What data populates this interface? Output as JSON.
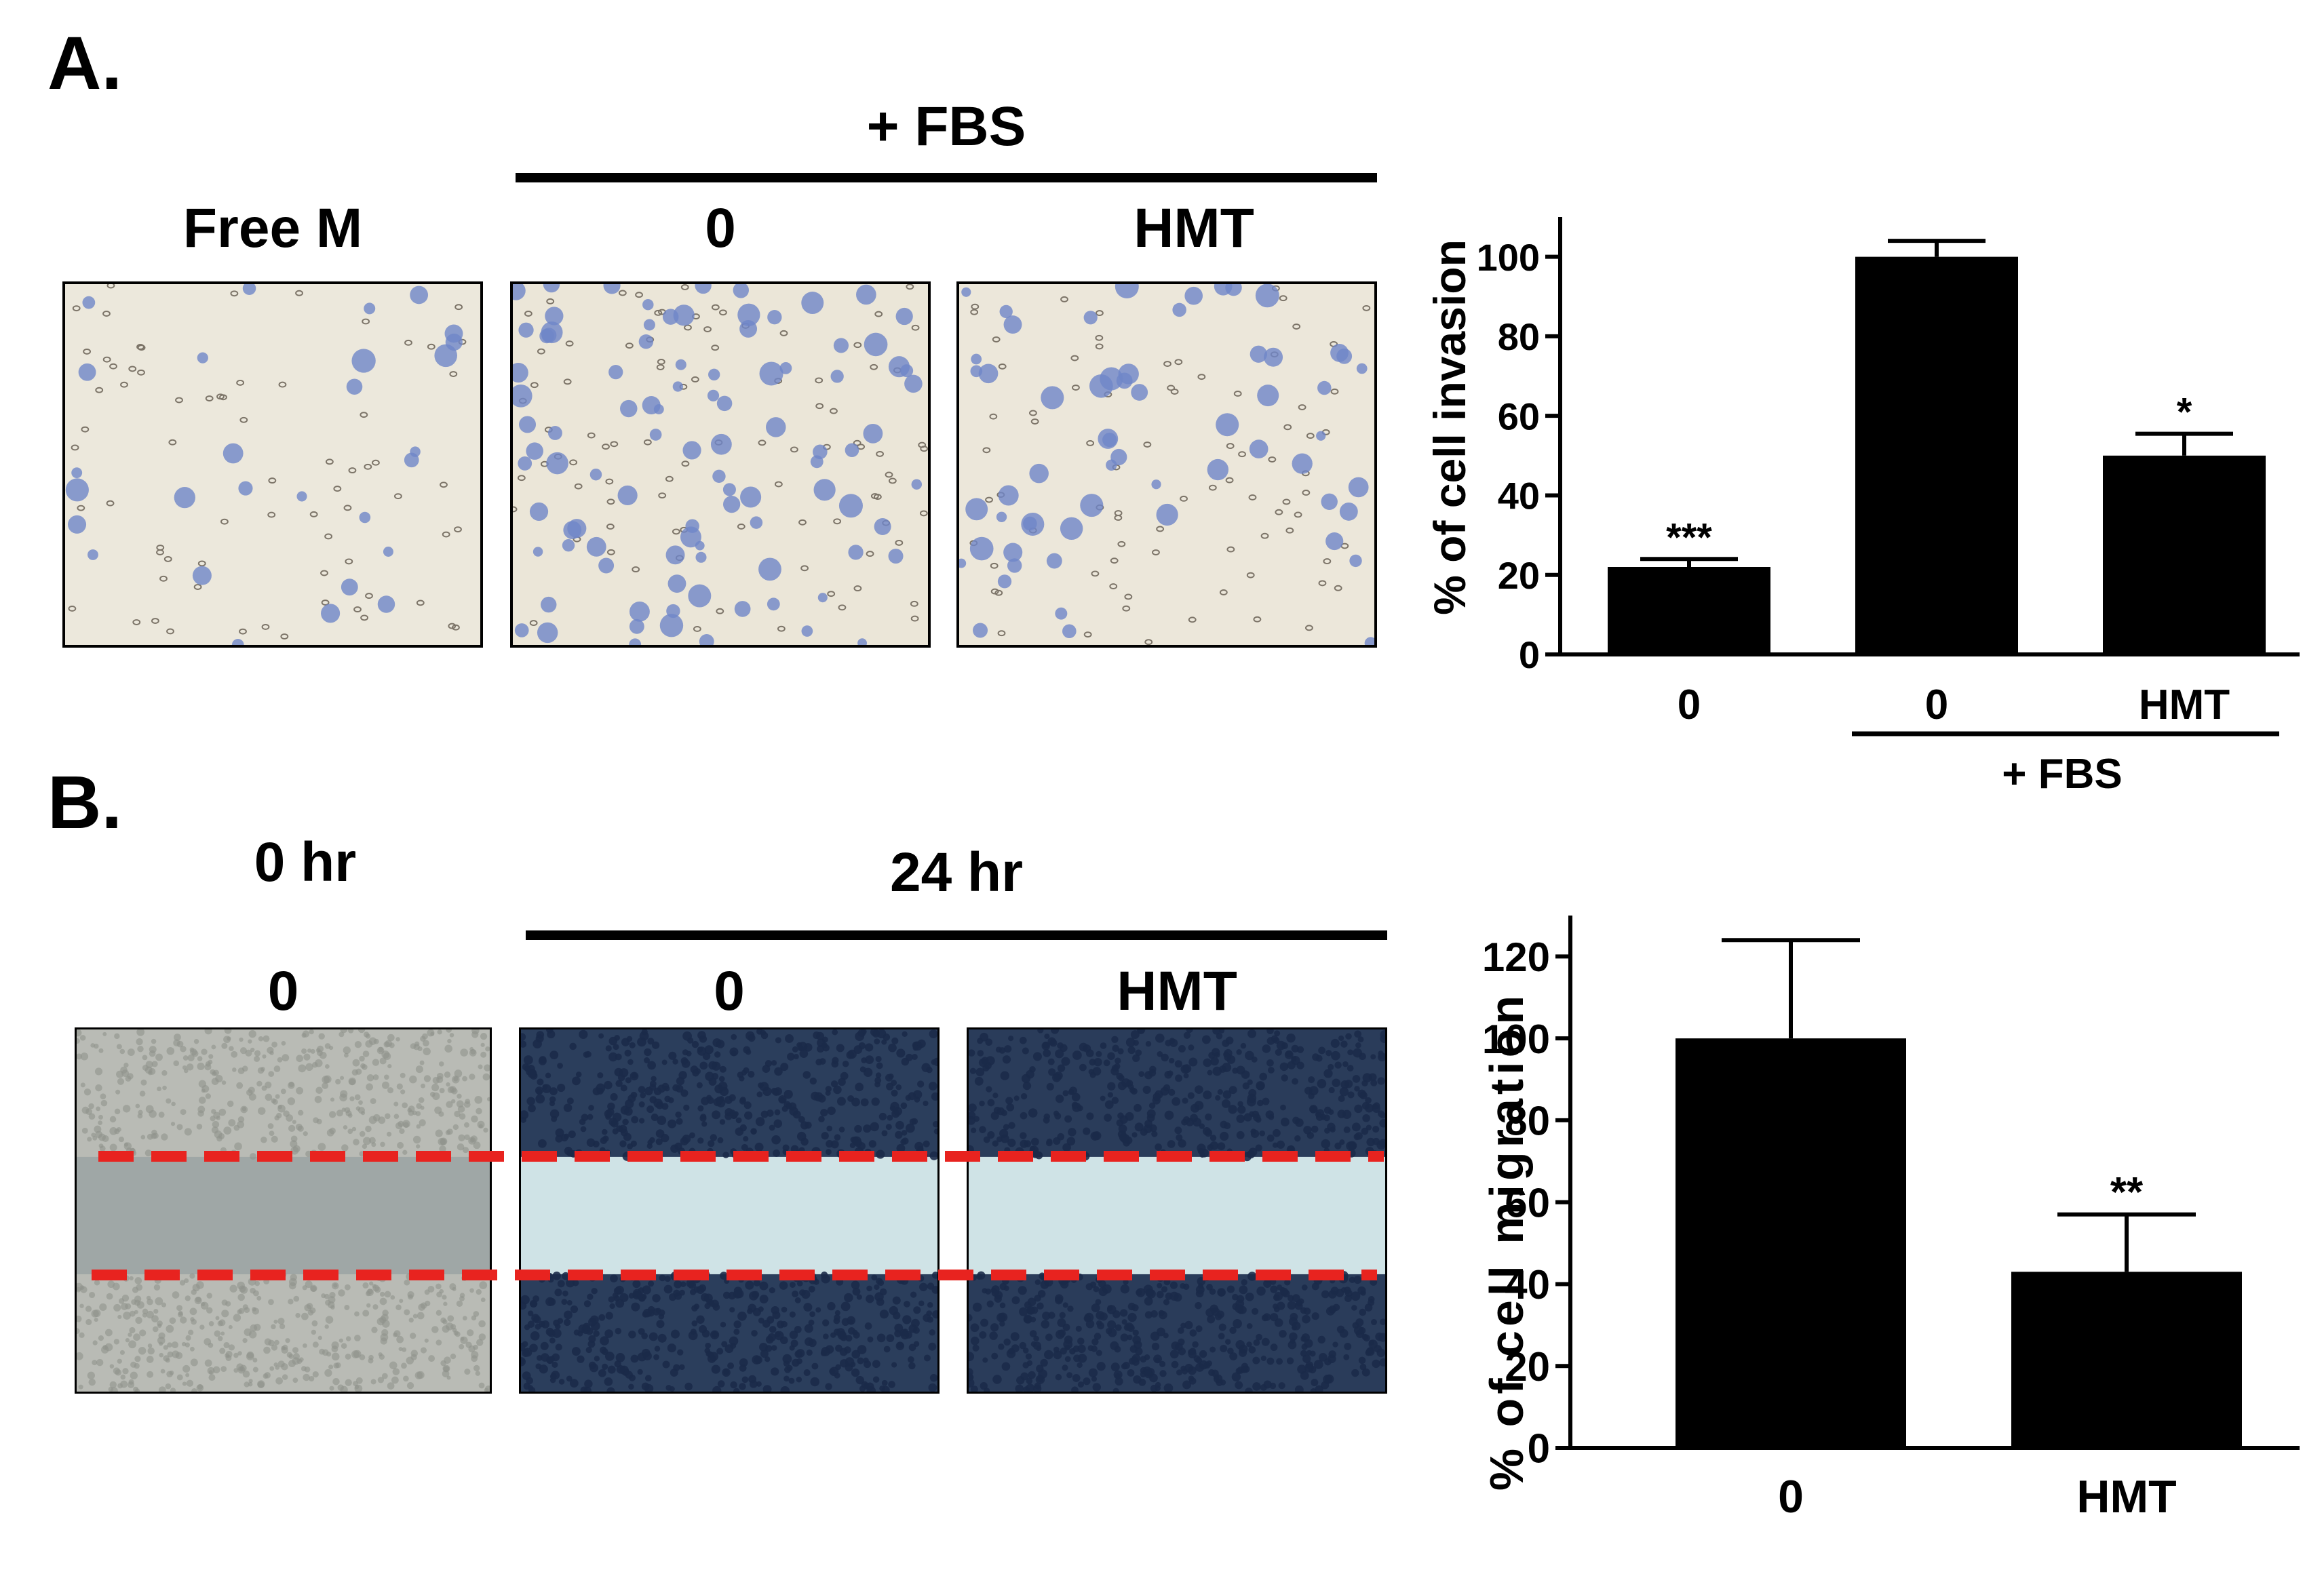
{
  "panel_a": {
    "letter": "A.",
    "group_label": "+ FBS",
    "image_labels": [
      "Free M",
      "0",
      "HMT"
    ]
  },
  "panel_b": {
    "letter": "B.",
    "time_0_label": "0 hr",
    "time_24_label": "24 hr",
    "image_labels": [
      "0",
      "0",
      "HMT"
    ]
  },
  "chart_data": [
    {
      "type": "bar",
      "categories": [
        "0",
        "0",
        "HMT"
      ],
      "values": [
        22,
        100,
        50
      ],
      "errors": [
        2,
        4,
        5.5
      ],
      "significance": [
        "***",
        "",
        "*"
      ],
      "group_label": "+ FBS",
      "group_categories": [
        "0",
        "HMT"
      ],
      "ylabel": "% of cell invasion",
      "xlabel": "",
      "ylim": [
        0,
        110
      ],
      "yticks": [
        0,
        20,
        40,
        60,
        80,
        100
      ],
      "bar_color": "#000000"
    },
    {
      "type": "bar",
      "categories": [
        "0",
        "HMT"
      ],
      "values": [
        100,
        43
      ],
      "errors": [
        24,
        14
      ],
      "significance": [
        "",
        "**"
      ],
      "ylabel": "% of cell migration",
      "xlabel": "",
      "ylim": [
        0,
        130
      ],
      "yticks": [
        0,
        20,
        40,
        60,
        80,
        100,
        120
      ],
      "bar_color": "#000000"
    }
  ]
}
